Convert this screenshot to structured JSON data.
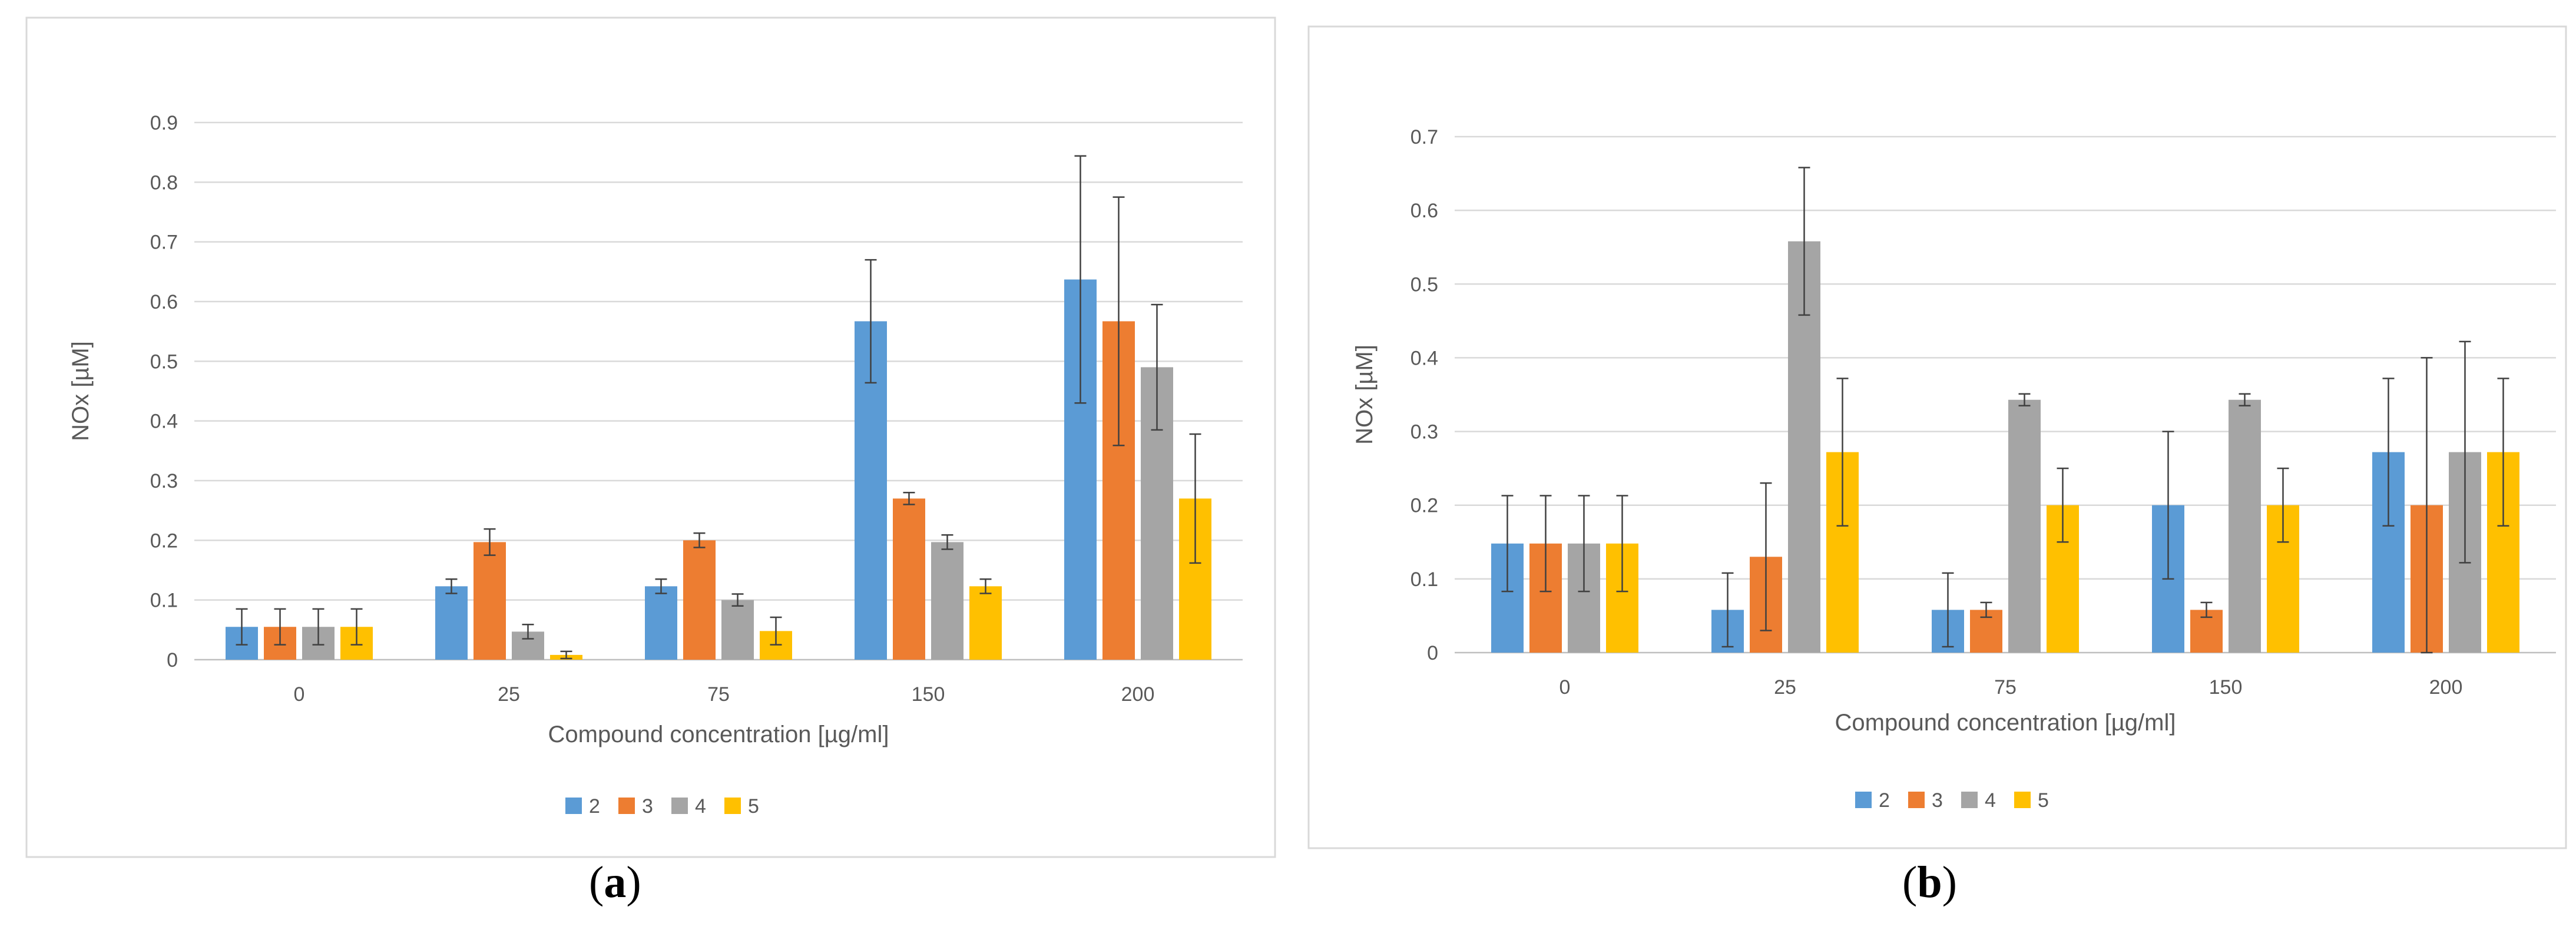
{
  "colors": {
    "s2": "#5b9bd5",
    "s3": "#ed7d31",
    "s4": "#a5a5a5",
    "s5": "#ffc000"
  },
  "chart_data": [
    {
      "type": "bar",
      "panel": "a",
      "xlabel": "Compound concentration [µg/ml]",
      "ylabel": "NOx [µM]",
      "categories": [
        "0",
        "25",
        "75",
        "150",
        "200"
      ],
      "ylim": [
        0,
        0.9
      ],
      "yticks": [
        "0",
        "0.1",
        "0.2",
        "0.3",
        "0.4",
        "0.5",
        "0.6",
        "0.7",
        "0.8",
        "0.9"
      ],
      "legend": "bottom",
      "series": [
        {
          "name": "2",
          "values": [
            0.055,
            0.123,
            0.123,
            0.567,
            0.637
          ],
          "errors": [
            0.03,
            0.012,
            0.012,
            0.103,
            0.207
          ]
        },
        {
          "name": "3",
          "values": [
            0.055,
            0.197,
            0.2,
            0.27,
            0.567
          ],
          "errors": [
            0.03,
            0.022,
            0.012,
            0.01,
            0.208
          ]
        },
        {
          "name": "4",
          "values": [
            0.055,
            0.047,
            0.1,
            0.197,
            0.49
          ],
          "errors": [
            0.03,
            0.012,
            0.01,
            0.012,
            0.105
          ]
        },
        {
          "name": "5",
          "values": [
            0.055,
            0.008,
            0.048,
            0.123,
            0.27
          ],
          "errors": [
            0.03,
            0.006,
            0.023,
            0.012,
            0.108
          ]
        }
      ]
    },
    {
      "type": "bar",
      "panel": "b",
      "xlabel": "Compound concentration [µg/ml]",
      "ylabel": "NOx [µM]",
      "categories": [
        "0",
        "25",
        "75",
        "150",
        "200"
      ],
      "ylim": [
        0,
        0.7
      ],
      "yticks": [
        "0",
        "0.1",
        "0.2",
        "0.3",
        "0.4",
        "0.5",
        "0.6",
        "0.7"
      ],
      "legend": "bottom",
      "series": [
        {
          "name": "2",
          "values": [
            0.148,
            0.058,
            0.058,
            0.2,
            0.272
          ],
          "errors": [
            0.065,
            0.05,
            0.05,
            0.1,
            0.1
          ]
        },
        {
          "name": "3",
          "values": [
            0.148,
            0.13,
            0.058,
            0.058,
            0.2
          ],
          "errors": [
            0.065,
            0.1,
            0.01,
            0.01,
            0.2
          ]
        },
        {
          "name": "4",
          "values": [
            0.148,
            0.558,
            0.343,
            0.343,
            0.272
          ],
          "errors": [
            0.065,
            0.1,
            0.008,
            0.008,
            0.15
          ]
        },
        {
          "name": "5",
          "values": [
            0.148,
            0.272,
            0.2,
            0.2,
            0.272
          ],
          "errors": [
            0.065,
            0.1,
            0.05,
            0.05,
            0.1
          ]
        }
      ]
    }
  ],
  "labels": {
    "a": "a",
    "b": "b"
  }
}
